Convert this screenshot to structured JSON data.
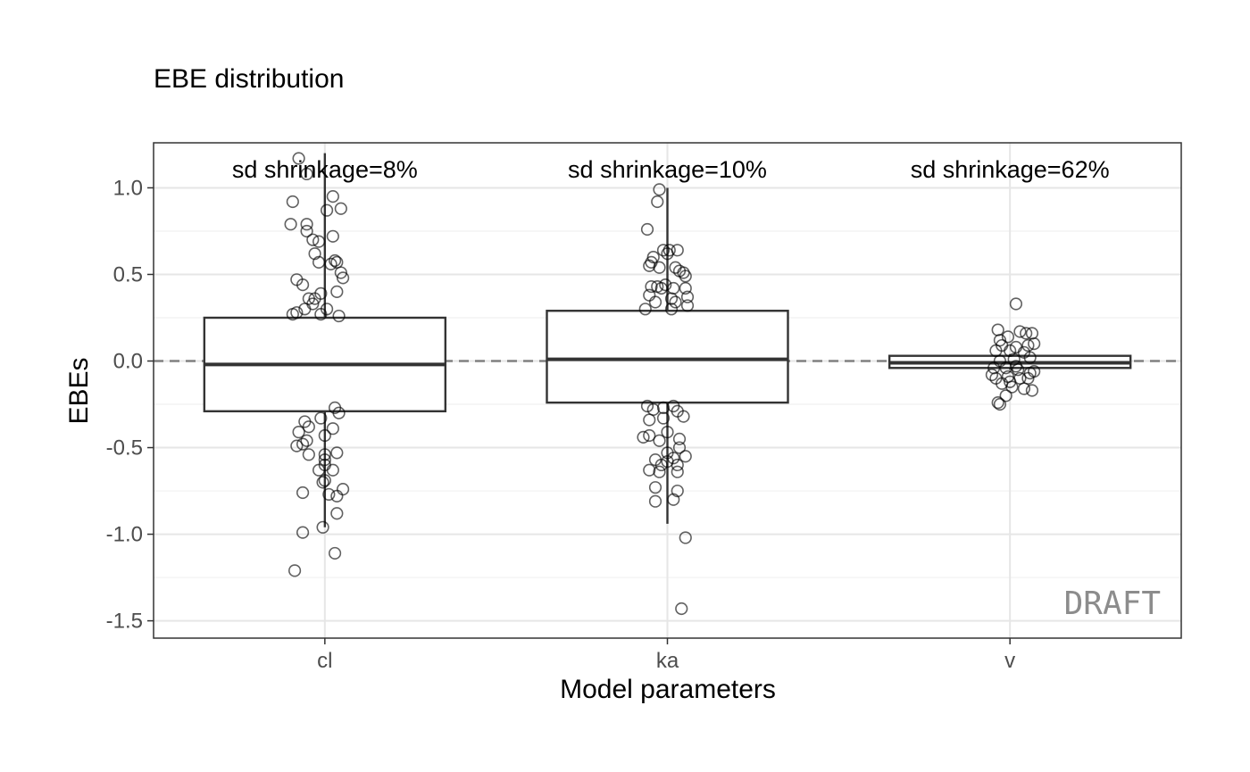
{
  "chart_data": {
    "type": "box",
    "title": "EBE distribution",
    "xlabel": "Model parameters",
    "ylabel": "EBEs",
    "categories": [
      "cl",
      "ka",
      "v"
    ],
    "ylim": [
      -1.6,
      1.26
    ],
    "yticks": [
      1.0,
      0.5,
      0.0,
      -0.5,
      -1.0,
      -1.5
    ],
    "ytick_labels": [
      "1.0",
      "0.5",
      "0.0",
      "-0.5",
      "-1.0",
      "-1.5"
    ],
    "grid": true,
    "reference_line": {
      "y": 0,
      "style": "dashed",
      "color": "#808080"
    },
    "watermark": "DRAFT",
    "annotations": [
      "sd shrinkage=8%",
      "sd shrinkage=10%",
      "sd shrinkage=62%"
    ],
    "boxes": [
      {
        "category": "cl",
        "whisker_low": -0.96,
        "q1": -0.29,
        "median": -0.02,
        "q3": 0.25,
        "whisker_high": 1.2
      },
      {
        "category": "ka",
        "whisker_low": -0.94,
        "q1": -0.24,
        "median": 0.01,
        "q3": 0.29,
        "whisker_high": 1.0
      },
      {
        "category": "v",
        "whisker_low": -0.05,
        "q1": -0.04,
        "median": -0.01,
        "q3": 0.03,
        "whisker_high": 0.04
      }
    ],
    "points": {
      "cl": [
        [
          -0.13,
          1.17
        ],
        [
          -0.09,
          1.08
        ],
        [
          0.04,
          0.95
        ],
        [
          -0.16,
          0.92
        ],
        [
          0.01,
          0.87
        ],
        [
          0.08,
          0.88
        ],
        [
          -0.09,
          0.79
        ],
        [
          -0.17,
          0.79
        ],
        [
          -0.09,
          0.75
        ],
        [
          -0.06,
          0.7
        ],
        [
          0.04,
          0.72
        ],
        [
          -0.03,
          0.69
        ],
        [
          -0.05,
          0.62
        ],
        [
          -0.03,
          0.57
        ],
        [
          0.03,
          0.56
        ],
        [
          0.05,
          0.58
        ],
        [
          0.06,
          0.57
        ],
        [
          0.08,
          0.51
        ],
        [
          0.09,
          0.48
        ],
        [
          -0.14,
          0.47
        ],
        [
          -0.11,
          0.44
        ],
        [
          -0.08,
          0.36
        ],
        [
          -0.05,
          0.36
        ],
        [
          -0.02,
          0.39
        ],
        [
          0.06,
          0.4
        ],
        [
          -0.14,
          0.28
        ],
        [
          -0.1,
          0.3
        ],
        [
          -0.06,
          0.33
        ],
        [
          0.01,
          0.3
        ],
        [
          0.07,
          0.26
        ],
        [
          -0.16,
          0.27
        ],
        [
          -0.02,
          0.27
        ],
        [
          0.07,
          -0.3
        ],
        [
          0.05,
          -0.27
        ],
        [
          -0.02,
          -0.33
        ],
        [
          -0.1,
          -0.35
        ],
        [
          -0.08,
          -0.38
        ],
        [
          -0.13,
          -0.41
        ],
        [
          -0.09,
          -0.46
        ],
        [
          -0.11,
          -0.48
        ],
        [
          -0.14,
          -0.49
        ],
        [
          0.0,
          -0.43
        ],
        [
          0.04,
          -0.39
        ],
        [
          0.06,
          -0.53
        ],
        [
          -0.08,
          -0.54
        ],
        [
          0.0,
          -0.54
        ],
        [
          0.0,
          -0.57
        ],
        [
          0.0,
          -0.6
        ],
        [
          -0.03,
          -0.63
        ],
        [
          0.04,
          -0.63
        ],
        [
          0.0,
          -0.69
        ],
        [
          -0.01,
          -0.7
        ],
        [
          0.09,
          -0.74
        ],
        [
          0.02,
          -0.77
        ],
        [
          0.06,
          -0.78
        ],
        [
          -0.11,
          -0.76
        ],
        [
          0.06,
          -0.88
        ],
        [
          -0.01,
          -0.96
        ],
        [
          -0.11,
          -0.99
        ],
        [
          0.05,
          -1.11
        ],
        [
          -0.15,
          -1.21
        ]
      ],
      "ka": [
        [
          -0.04,
          0.99
        ],
        [
          -0.05,
          0.92
        ],
        [
          -0.1,
          0.76
        ],
        [
          -0.07,
          0.6
        ],
        [
          -0.08,
          0.57
        ],
        [
          0.01,
          0.64
        ],
        [
          -0.02,
          0.64
        ],
        [
          0.05,
          0.64
        ],
        [
          0.0,
          0.62
        ],
        [
          -0.09,
          0.55
        ],
        [
          -0.04,
          0.54
        ],
        [
          0.04,
          0.54
        ],
        [
          0.08,
          0.51
        ],
        [
          0.09,
          0.49
        ],
        [
          0.06,
          0.52
        ],
        [
          -0.08,
          0.43
        ],
        [
          -0.05,
          0.43
        ],
        [
          -0.03,
          0.42
        ],
        [
          -0.01,
          0.44
        ],
        [
          0.03,
          0.42
        ],
        [
          0.09,
          0.42
        ],
        [
          -0.09,
          0.38
        ],
        [
          -0.06,
          0.34
        ],
        [
          0.02,
          0.36
        ],
        [
          0.04,
          0.34
        ],
        [
          0.1,
          0.37
        ],
        [
          -0.11,
          0.3
        ],
        [
          0.02,
          0.3
        ],
        [
          0.1,
          0.32
        ],
        [
          -0.07,
          -0.28
        ],
        [
          -0.02,
          -0.27
        ],
        [
          0.03,
          -0.26
        ],
        [
          0.05,
          -0.29
        ],
        [
          0.08,
          -0.32
        ],
        [
          -0.1,
          -0.26
        ],
        [
          -0.09,
          -0.34
        ],
        [
          -0.02,
          -0.33
        ],
        [
          -0.09,
          -0.43
        ],
        [
          -0.12,
          -0.44
        ],
        [
          0.06,
          -0.45
        ],
        [
          0.0,
          -0.41
        ],
        [
          -0.04,
          -0.46
        ],
        [
          0.06,
          -0.5
        ],
        [
          0.0,
          -0.53
        ],
        [
          0.03,
          -0.56
        ],
        [
          0.09,
          -0.55
        ],
        [
          -0.06,
          -0.57
        ],
        [
          -0.03,
          -0.6
        ],
        [
          0.0,
          -0.58
        ],
        [
          0.05,
          -0.6
        ],
        [
          0.05,
          -0.64
        ],
        [
          -0.04,
          -0.64
        ],
        [
          -0.09,
          -0.63
        ],
        [
          -0.06,
          -0.73
        ],
        [
          0.05,
          -0.75
        ],
        [
          -0.06,
          -0.81
        ],
        [
          0.03,
          -0.8
        ],
        [
          0.09,
          -1.02
        ],
        [
          0.07,
          -1.43
        ]
      ],
      "v": [
        [
          0.03,
          0.33
        ],
        [
          -0.06,
          0.18
        ],
        [
          0.05,
          0.17
        ],
        [
          -0.01,
          0.14
        ],
        [
          -0.05,
          0.12
        ],
        [
          0.08,
          0.16
        ],
        [
          0.11,
          0.16
        ],
        [
          0.12,
          0.1
        ],
        [
          0.09,
          0.09
        ],
        [
          -0.04,
          0.09
        ],
        [
          0.03,
          0.08
        ],
        [
          -0.07,
          0.06
        ],
        [
          0.0,
          0.06
        ],
        [
          0.07,
          0.05
        ],
        [
          0.1,
          0.02
        ],
        [
          -0.05,
          0.0
        ],
        [
          0.02,
          0.01
        ],
        [
          -0.08,
          -0.04
        ],
        [
          -0.02,
          -0.04
        ],
        [
          0.04,
          -0.05
        ],
        [
          0.1,
          -0.07
        ],
        [
          -0.07,
          -0.1
        ],
        [
          -0.01,
          -0.09
        ],
        [
          0.05,
          -0.1
        ],
        [
          0.09,
          -0.1
        ],
        [
          -0.04,
          -0.13
        ],
        [
          0.01,
          -0.15
        ],
        [
          0.07,
          -0.16
        ],
        [
          0.11,
          -0.17
        ],
        [
          -0.02,
          -0.2
        ],
        [
          -0.06,
          -0.24
        ],
        [
          -0.05,
          -0.25
        ],
        [
          0.0,
          -0.12
        ],
        [
          0.12,
          -0.06
        ],
        [
          -0.09,
          -0.08
        ],
        [
          0.03,
          -0.03
        ]
      ]
    }
  }
}
